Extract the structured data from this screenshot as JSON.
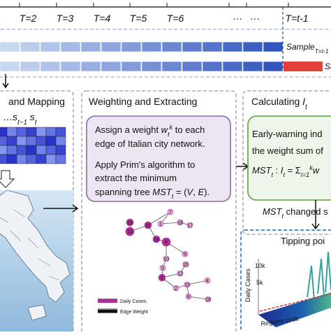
{
  "timeline": {
    "labels": [
      "T=2",
      "T=3",
      "T=4",
      "T=5",
      "T=6",
      "···",
      "···",
      "T=t-1"
    ]
  },
  "sample_rows": [
    {
      "runs": [
        {
          "text": "Sample",
          "style": "italic"
        },
        {
          "text": "T=t-1",
          "style": "sub"
        }
      ]
    },
    {
      "runs": [
        {
          "text": "Sa",
          "style": "italic"
        }
      ]
    }
  ],
  "left_panel": {
    "title": "and Mapping",
    "series_label": {
      "runs": [
        {
          "text": "…"
        },
        {
          "text": "s",
          "style": "italic"
        },
        {
          "text": "t−1",
          "style": "sub"
        },
        {
          "text": " s",
          "style": "italic"
        },
        {
          "text": "t",
          "style": "sub"
        }
      ]
    }
  },
  "middle_panel": {
    "title": "Weighting and Extracting",
    "box_lines": [
      {
        "runs": [
          {
            "text": "Assign a weight "
          },
          {
            "text": "w",
            "style": "italic"
          },
          {
            "text": "t",
            "style": "sub"
          },
          {
            "text": "k",
            "style": "sup"
          },
          {
            "text": " to each"
          }
        ]
      },
      {
        "runs": [
          {
            "text": "edge of Italian city network."
          }
        ]
      },
      {
        "runs": [
          {
            "text": "Apply Prim's algorithm to"
          }
        ]
      },
      {
        "runs": [
          {
            "text": "extract the minimum"
          }
        ]
      },
      {
        "runs": [
          {
            "text": "spanning tree "
          },
          {
            "text": "MST",
            "style": "italic"
          },
          {
            "text": "t",
            "style": "sub"
          },
          {
            "text": " = ("
          },
          {
            "text": "V",
            "style": "italic"
          },
          {
            "text": ", "
          },
          {
            "text": "E",
            "style": "italic"
          },
          {
            "text": ")."
          }
        ]
      }
    ],
    "nodes": [
      "19",
      "13",
      "11",
      "7",
      "1",
      "18",
      "17",
      "14",
      "6",
      "9",
      "10",
      "20",
      "12",
      "3",
      "5",
      "2",
      "15",
      "4",
      "8",
      "16"
    ],
    "legend": [
      "Daily Cases",
      "Edge Weight"
    ]
  },
  "right_panel": {
    "title": {
      "runs": [
        {
          "text": "Calculating "
        },
        {
          "text": "I",
          "style": "italic"
        },
        {
          "text": "t",
          "style": "sub"
        }
      ]
    },
    "box_lines": [
      {
        "runs": [
          {
            "text": "Early-warning ind"
          }
        ]
      },
      {
        "runs": [
          {
            "text": "the weight sum of"
          }
        ]
      },
      {
        "runs": [
          {
            "text": "MST",
            "style": "italic"
          },
          {
            "text": "t",
            "style": "sub"
          },
          {
            "text": " : "
          },
          {
            "text": "I",
            "style": "italic"
          },
          {
            "text": "t",
            "style": "sub"
          },
          {
            "text": " = Σ"
          },
          {
            "text": "i=1",
            "style": "sub"
          },
          {
            "text": "k",
            "style": "sup"
          },
          {
            "text": "w",
            "style": "italic"
          }
        ]
      }
    ],
    "change_label": {
      "runs": [
        {
          "text": "MST",
          "style": "italic"
        },
        {
          "text": "t",
          "style": "sub"
        },
        {
          "text": " changed s"
        }
      ]
    },
    "tipping": {
      "title": "Tipping poi",
      "y_ticks": [
        "10k",
        "5k"
      ],
      "y_label": "Daily Cases",
      "x_label": "Regions code"
    }
  }
}
